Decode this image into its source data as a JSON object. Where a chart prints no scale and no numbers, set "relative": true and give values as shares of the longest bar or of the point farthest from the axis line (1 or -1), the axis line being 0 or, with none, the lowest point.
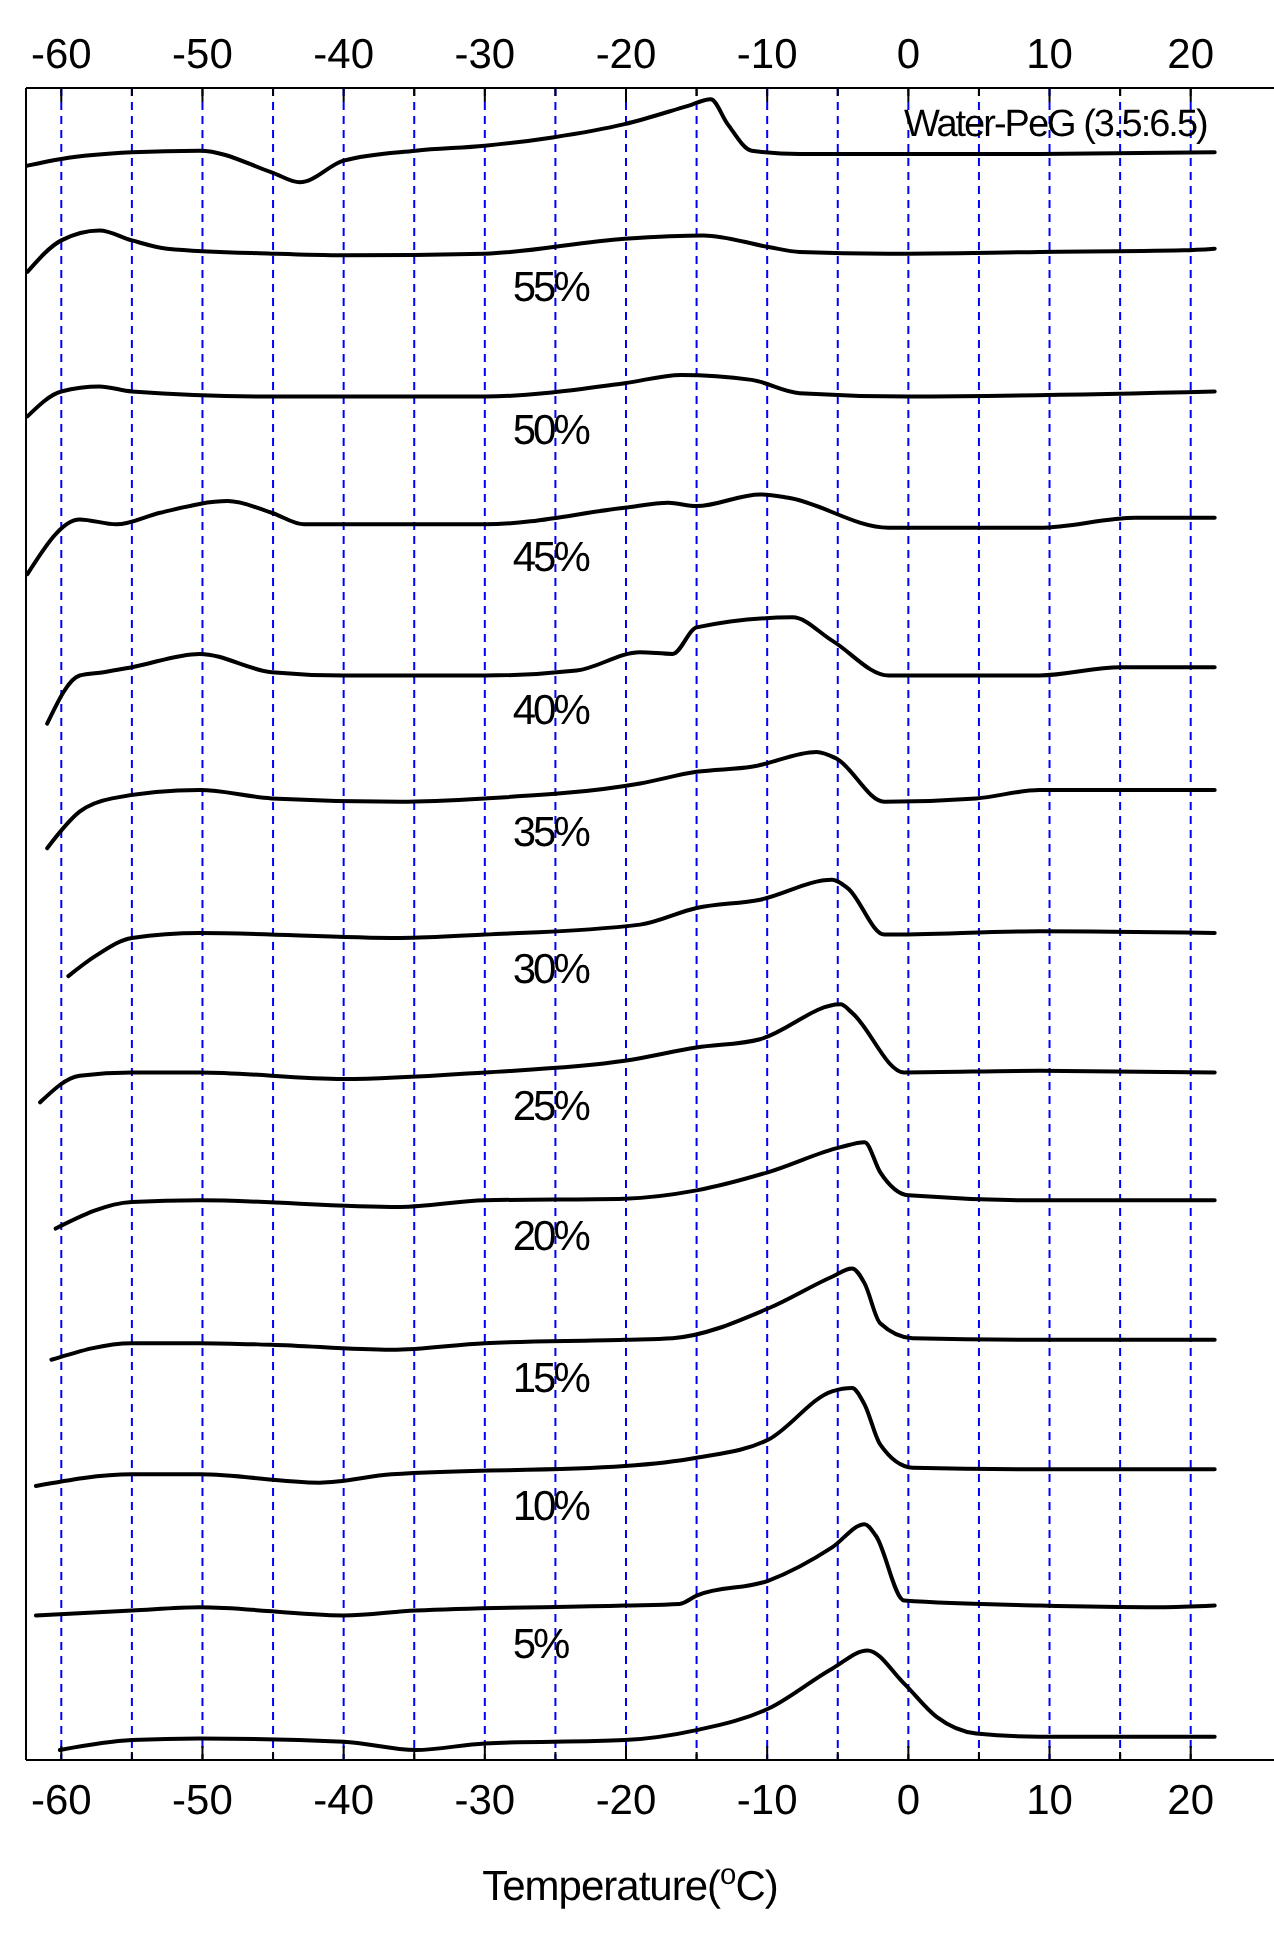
{
  "chart_data": {
    "type": "line",
    "relative": true,
    "xlabel": "Temperature($^{o}$C)",
    "xlim": [
      -62.5,
      25.9
    ],
    "xticks": [
      -60,
      {
        "value": -55,
        "label": null
      },
      -50,
      {
        "value": -45,
        "label": null
      },
      -40,
      {
        "value": -35,
        "label": null
      },
      -30,
      {
        "value": -25,
        "label": null
      },
      -20,
      {
        "value": -15,
        "label": null
      },
      -10,
      {
        "value": -5,
        "label": null
      },
      0,
      {
        "value": 5,
        "label": null
      },
      10,
      {
        "value": 15,
        "label": null
      },
      20
    ],
    "x2lim": [
      -62.5,
      25.9
    ],
    "x2ticks": [
      -60,
      {
        "value": -55,
        "label": null
      },
      -50,
      {
        "value": -45,
        "label": null
      },
      -40,
      {
        "value": -35,
        "label": null
      },
      -30,
      {
        "value": -25,
        "label": null
      },
      -20,
      {
        "value": -15,
        "label": null
      },
      -10,
      {
        "value": -5,
        "label": null
      },
      0,
      {
        "value": 5,
        "label": null
      },
      10,
      {
        "value": 15,
        "label": null
      },
      20
    ],
    "grid": "x",
    "marker": "none",
    "line_style": "solid",
    "series": [
      {
        "name": "Water-PeG (3.5:6.5)",
        "color": "#000000",
        "x": [
          -62.4,
          -60,
          -55,
          -50.2,
          -45.1,
          -43.1,
          -40,
          -34.9,
          -30,
          -25.2,
          -20.1,
          -15.6,
          -14.0,
          -12.8,
          -11.1,
          -7.7,
          0,
          9.3,
          21.7
        ],
        "values": [
          0.96,
          0.964,
          0.968,
          0.969,
          0.956,
          0.95,
          0.963,
          0.969,
          0.972,
          0.977,
          0.985,
          0.996,
          1.0,
          0.985,
          0.969,
          0.967,
          0.967,
          0.967,
          0.968
        ]
      },
      {
        "name": "55%",
        "color": "#000000",
        "x": [
          -62.4,
          -60,
          -57.3,
          -55,
          -52.5,
          -45.1,
          -40,
          -30,
          -20.1,
          -14.5,
          -9.9,
          -7.7,
          -1.4,
          9.3,
          19.5,
          21.7
        ],
        "values": [
          0.896,
          0.915,
          0.921,
          0.915,
          0.91,
          0.907,
          0.906,
          0.907,
          0.916,
          0.918,
          0.911,
          0.908,
          0.907,
          0.908,
          0.909,
          0.91
        ]
      },
      {
        "name": "50%",
        "color": "#000000",
        "x": [
          -62.4,
          -60,
          -57.3,
          -55,
          -45.1,
          -30,
          -20.1,
          -16.1,
          -11.1,
          -7.7,
          0,
          21.7
        ],
        "values": [
          0.809,
          0.824,
          0.827,
          0.824,
          0.821,
          0.821,
          0.829,
          0.834,
          0.831,
          0.823,
          0.821,
          0.824
        ]
      },
      {
        "name": "45%",
        "color": "#000000",
        "x": [
          -62.4,
          -58.7,
          -56.1,
          -53.0,
          -48.2,
          -45.1,
          -42.8,
          -30,
          -20.1,
          -17.0,
          -15.0,
          -10.5,
          -8.5,
          -1.4,
          9.3,
          16.1,
          21.7
        ],
        "values": [
          0.714,
          0.747,
          0.744,
          0.751,
          0.758,
          0.751,
          0.744,
          0.744,
          0.754,
          0.757,
          0.755,
          0.762,
          0.76,
          0.742,
          0.742,
          0.748,
          0.748
        ]
      },
      {
        "name": "40%",
        "color": "#000000",
        "x": [
          -61.0,
          -58.7,
          -57.0,
          -55,
          -50.2,
          -45.1,
          -40,
          -30,
          -23.5,
          -19.0,
          -16.7,
          -15.0,
          -8.2,
          -5.4,
          -1.4,
          9.3,
          15.0,
          21.7
        ],
        "values": [
          0.624,
          0.653,
          0.655,
          0.658,
          0.666,
          0.655,
          0.653,
          0.653,
          0.656,
          0.667,
          0.666,
          0.682,
          0.688,
          0.674,
          0.653,
          0.653,
          0.658,
          0.658
        ]
      },
      {
        "name": "35%",
        "color": "#000000",
        "x": [
          -61.0,
          -58.7,
          -56.4,
          -50.2,
          -45.1,
          -36.0,
          -30,
          -19.0,
          -15.0,
          -11.1,
          -6.5,
          -5.1,
          -1.7,
          4.8,
          9.3,
          21.7
        ],
        "values": [
          0.549,
          0.571,
          0.579,
          0.584,
          0.579,
          0.577,
          0.579,
          0.588,
          0.595,
          0.598,
          0.607,
          0.603,
          0.577,
          0.579,
          0.584,
          0.584
        ]
      },
      {
        "name": "30%",
        "color": "#000000",
        "x": [
          -59.5,
          -57.6,
          -55,
          -50.2,
          -36.0,
          -30,
          -19.0,
          -15.0,
          -10.5,
          -5.4,
          -4.3,
          -1.7,
          9.3,
          21.7
        ],
        "values": [
          0.472,
          0.484,
          0.495,
          0.498,
          0.495,
          0.497,
          0.503,
          0.513,
          0.518,
          0.53,
          0.525,
          0.497,
          0.499,
          0.498
        ]
      },
      {
        "name": "25%",
        "color": "#000000",
        "x": [
          -61.5,
          -58.7,
          -55,
          -50.2,
          -40,
          -30,
          -20.1,
          -15.0,
          -10.5,
          -4.8,
          -4.0,
          -0.3,
          9.3,
          21.7
        ],
        "values": [
          0.396,
          0.412,
          0.414,
          0.414,
          0.41,
          0.414,
          0.421,
          0.429,
          0.434,
          0.455,
          0.45,
          0.414,
          0.415,
          0.414
        ]
      },
      {
        "name": "20%",
        "color": "#000000",
        "x": [
          -60.4,
          -55,
          -50.2,
          -36.0,
          -30,
          -20.1,
          -15.0,
          -9.9,
          -4.8,
          -3.1,
          -2.0,
          0,
          9.3,
          21.7
        ],
        "values": [
          0.32,
          0.336,
          0.337,
          0.333,
          0.337,
          0.338,
          0.343,
          0.354,
          0.369,
          0.372,
          0.354,
          0.34,
          0.337,
          0.337
        ]
      },
      {
        "name": "15%",
        "color": "#000000",
        "x": [
          -60.7,
          -55,
          -50.2,
          -45.1,
          -36.6,
          -30,
          -20.1,
          -16.7,
          -9.9,
          -5.4,
          -4.0,
          -3.1,
          -2.0,
          0.3,
          9.3,
          21.7
        ],
        "values": [
          0.241,
          0.251,
          0.251,
          0.25,
          0.247,
          0.251,
          0.253,
          0.254,
          0.272,
          0.291,
          0.296,
          0.287,
          0.263,
          0.254,
          0.253,
          0.253
        ]
      },
      {
        "name": "10%",
        "color": "#000000",
        "x": [
          -61.8,
          -55,
          -50.2,
          -41.7,
          -36.6,
          -20.1,
          -15.0,
          -9.9,
          -5.4,
          -4.0,
          -3.1,
          -2.0,
          0.3,
          9.3,
          21.7
        ],
        "values": [
          0.165,
          0.172,
          0.172,
          0.167,
          0.172,
          0.177,
          0.182,
          0.193,
          0.222,
          0.224,
          0.214,
          0.19,
          0.176,
          0.175,
          0.175
        ]
      },
      {
        "name": "5%",
        "color": "#000000",
        "x": [
          -61.8,
          -55,
          -50.2,
          -40,
          -34.9,
          -20.1,
          -16.2,
          -15.0,
          -9.9,
          -5.4,
          -3.1,
          -2.3,
          -0.3,
          9.3,
          17.8,
          21.7
        ],
        "values": [
          0.087,
          0.09,
          0.092,
          0.087,
          0.09,
          0.093,
          0.094,
          0.099,
          0.108,
          0.128,
          0.142,
          0.135,
          0.096,
          0.093,
          0.092,
          0.093
        ]
      },
      {
        "color": "#000000",
        "x": [
          -60.1,
          -55,
          -50.2,
          -40,
          -34.9,
          -30,
          -20.1,
          -15.0,
          -9.9,
          -5.4,
          -2.9,
          -0.3,
          2.0,
          4.8,
          9.3,
          21.7
        ],
        "values": [
          0.006,
          0.012,
          0.013,
          0.011,
          0.006,
          0.01,
          0.012,
          0.018,
          0.031,
          0.055,
          0.066,
          0.046,
          0.026,
          0.016,
          0.014,
          0.014
        ]
      }
    ]
  }
}
